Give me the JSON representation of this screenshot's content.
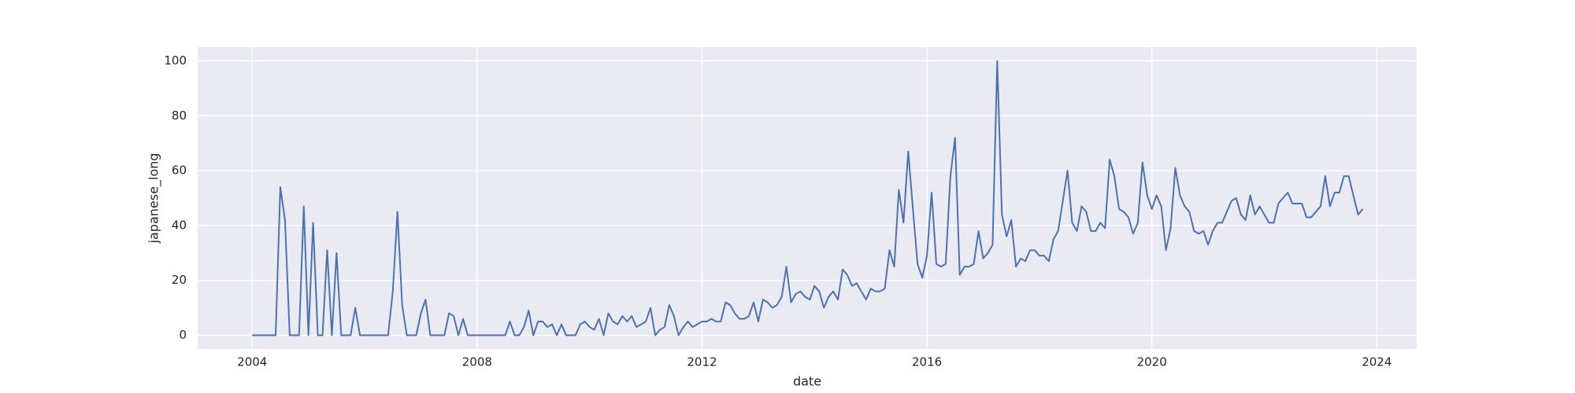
{
  "chart_data": {
    "type": "line",
    "x_label": "date",
    "y_label": "japanese_long",
    "color": "#4c72b0",
    "grid": true,
    "xlim": [
      2003.03,
      2024.71
    ],
    "xticks": [
      2004,
      2008,
      2012,
      2016,
      2020,
      2024
    ],
    "ylim": [
      -5,
      105
    ],
    "yticks": [
      0,
      20,
      40,
      60,
      80,
      100
    ],
    "x": [
      2004.0,
      2004.083,
      2004.167,
      2004.25,
      2004.333,
      2004.417,
      2004.5,
      2004.583,
      2004.667,
      2004.75,
      2004.833,
      2004.917,
      2005.0,
      2005.083,
      2005.167,
      2005.25,
      2005.333,
      2005.417,
      2005.5,
      2005.583,
      2005.667,
      2005.75,
      2005.833,
      2005.917,
      2006.0,
      2006.083,
      2006.167,
      2006.25,
      2006.333,
      2006.417,
      2006.5,
      2006.583,
      2006.667,
      2006.75,
      2006.833,
      2006.917,
      2007.0,
      2007.083,
      2007.167,
      2007.25,
      2007.333,
      2007.417,
      2007.5,
      2007.583,
      2007.667,
      2007.75,
      2007.833,
      2007.917,
      2008.0,
      2008.083,
      2008.167,
      2008.25,
      2008.333,
      2008.417,
      2008.5,
      2008.583,
      2008.667,
      2008.75,
      2008.833,
      2008.917,
      2009.0,
      2009.083,
      2009.167,
      2009.25,
      2009.333,
      2009.417,
      2009.5,
      2009.583,
      2009.667,
      2009.75,
      2009.833,
      2009.917,
      2010.0,
      2010.083,
      2010.167,
      2010.25,
      2010.333,
      2010.417,
      2010.5,
      2010.583,
      2010.667,
      2010.75,
      2010.833,
      2010.917,
      2011.0,
      2011.083,
      2011.167,
      2011.25,
      2011.333,
      2011.417,
      2011.5,
      2011.583,
      2011.667,
      2011.75,
      2011.833,
      2011.917,
      2012.0,
      2012.083,
      2012.167,
      2012.25,
      2012.333,
      2012.417,
      2012.5,
      2012.583,
      2012.667,
      2012.75,
      2012.833,
      2012.917,
      2013.0,
      2013.083,
      2013.167,
      2013.25,
      2013.333,
      2013.417,
      2013.5,
      2013.583,
      2013.667,
      2013.75,
      2013.833,
      2013.917,
      2014.0,
      2014.083,
      2014.167,
      2014.25,
      2014.333,
      2014.417,
      2014.5,
      2014.583,
      2014.667,
      2014.75,
      2014.833,
      2014.917,
      2015.0,
      2015.083,
      2015.167,
      2015.25,
      2015.333,
      2015.417,
      2015.5,
      2015.583,
      2015.667,
      2015.75,
      2015.833,
      2015.917,
      2016.0,
      2016.083,
      2016.167,
      2016.25,
      2016.333,
      2016.417,
      2016.5,
      2016.583,
      2016.667,
      2016.75,
      2016.833,
      2016.917,
      2017.0,
      2017.083,
      2017.167,
      2017.25,
      2017.333,
      2017.417,
      2017.5,
      2017.583,
      2017.667,
      2017.75,
      2017.833,
      2017.917,
      2018.0,
      2018.083,
      2018.167,
      2018.25,
      2018.333,
      2018.417,
      2018.5,
      2018.583,
      2018.667,
      2018.75,
      2018.833,
      2018.917,
      2019.0,
      2019.083,
      2019.167,
      2019.25,
      2019.333,
      2019.417,
      2019.5,
      2019.583,
      2019.667,
      2019.75,
      2019.833,
      2019.917,
      2020.0,
      2020.083,
      2020.167,
      2020.25,
      2020.333,
      2020.417,
      2020.5,
      2020.583,
      2020.667,
      2020.75,
      2020.833,
      2020.917,
      2021.0,
      2021.083,
      2021.167,
      2021.25,
      2021.333,
      2021.417,
      2021.5,
      2021.583,
      2021.667,
      2021.75,
      2021.833,
      2021.917,
      2022.0,
      2022.083,
      2022.167,
      2022.25,
      2022.333,
      2022.417,
      2022.5,
      2022.583,
      2022.667,
      2022.75,
      2022.833,
      2022.917,
      2023.0,
      2023.083,
      2023.167,
      2023.25,
      2023.333,
      2023.417,
      2023.5,
      2023.583,
      2023.667,
      2023.75
    ],
    "values": [
      0,
      0,
      0,
      0,
      0,
      0,
      54,
      42,
      0,
      0,
      0,
      47,
      0,
      41,
      0,
      0,
      31,
      0,
      30,
      0,
      0,
      0,
      10,
      0,
      0,
      0,
      0,
      0,
      0,
      0,
      16,
      45,
      11,
      0,
      0,
      0,
      8,
      13,
      0,
      0,
      0,
      0,
      8,
      7,
      0,
      6,
      0,
      0,
      0,
      0,
      0,
      0,
      0,
      0,
      0,
      5,
      0,
      0,
      3,
      9,
      0,
      5,
      5,
      3,
      4,
      0,
      4,
      0,
      0,
      0,
      4,
      5,
      3,
      2,
      6,
      0,
      8,
      5,
      4,
      7,
      5,
      7,
      3,
      4,
      5,
      10,
      0,
      2,
      3,
      11,
      7,
      0,
      3,
      5,
      3,
      4,
      5,
      5,
      6,
      5,
      5,
      12,
      11,
      8,
      6,
      6,
      7,
      12,
      5,
      13,
      12,
      10,
      11,
      14,
      25,
      12,
      15,
      16,
      14,
      13,
      18,
      16,
      10,
      14,
      16,
      13,
      24,
      22,
      18,
      19,
      16,
      13,
      17,
      16,
      16,
      17,
      31,
      25,
      53,
      41,
      67,
      46,
      26,
      21,
      29,
      52,
      26,
      25,
      26,
      58,
      72,
      22,
      25,
      25,
      26,
      38,
      28,
      30,
      33,
      100,
      44,
      36,
      42,
      25,
      28,
      27,
      31,
      31,
      29,
      29,
      27,
      35,
      38,
      49,
      60,
      41,
      38,
      47,
      45,
      38,
      38,
      41,
      39,
      64,
      58,
      46,
      45,
      43,
      37,
      41,
      63,
      51,
      46,
      51,
      47,
      31,
      39,
      61,
      51,
      47,
      45,
      38,
      37,
      38,
      33,
      38,
      41,
      41,
      45,
      49,
      50,
      44,
      42,
      51,
      44,
      47,
      44,
      41,
      41,
      48,
      50,
      52,
      48,
      48,
      48,
      43,
      43,
      45,
      47,
      58,
      47,
      52,
      52,
      58,
      58,
      51,
      44,
      46
    ]
  }
}
